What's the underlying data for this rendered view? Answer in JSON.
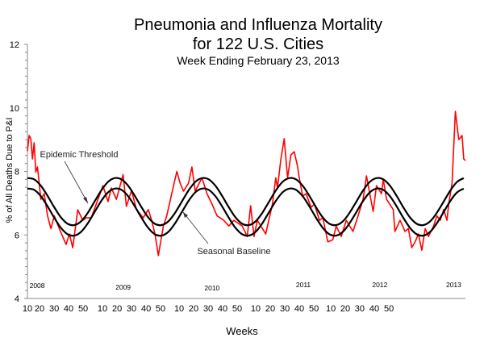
{
  "chart_data": {
    "type": "line",
    "title": "Pneumonia and Influenza Mortality",
    "title_line2": "for 122 U.S. Cities",
    "subtitle": "Week Ending  February 23, 2013",
    "xlabel": "Weeks",
    "ylabel": "% of All Deaths Due to P&I",
    "ylim": [
      4,
      12
    ],
    "xlim": [
      0,
      261
    ],
    "y_ticks": [
      4,
      6,
      8,
      10,
      12
    ],
    "y_minor_step": 0.25,
    "grid": false,
    "x_tick_labels": [
      {
        "week_index": 0,
        "label": "10"
      },
      {
        "week_index": 7.2,
        "label": "20"
      },
      {
        "week_index": 15.9,
        "label": "30"
      },
      {
        "week_index": 24.5,
        "label": "40"
      },
      {
        "week_index": 33.2,
        "label": "50"
      },
      {
        "week_index": 44.7,
        "label": "10"
      },
      {
        "week_index": 53.4,
        "label": "20"
      },
      {
        "week_index": 62,
        "label": "30"
      },
      {
        "week_index": 70.7,
        "label": "40"
      },
      {
        "week_index": 79.3,
        "label": "50"
      },
      {
        "week_index": 90.4,
        "label": "10"
      },
      {
        "week_index": 99,
        "label": "20"
      },
      {
        "week_index": 107.7,
        "label": "30"
      },
      {
        "week_index": 116.3,
        "label": "40"
      },
      {
        "week_index": 125,
        "label": "50"
      },
      {
        "week_index": 136,
        "label": "10"
      },
      {
        "week_index": 144.7,
        "label": "20"
      },
      {
        "week_index": 153.4,
        "label": "30"
      },
      {
        "week_index": 162,
        "label": "40"
      },
      {
        "week_index": 170.7,
        "label": "50"
      },
      {
        "week_index": 180.8,
        "label": "10"
      },
      {
        "week_index": 189.4,
        "label": "20"
      },
      {
        "week_index": 198,
        "label": "30"
      },
      {
        "week_index": 206.7,
        "label": "40"
      },
      {
        "week_index": 215.4,
        "label": "50"
      }
    ],
    "year_labels": [
      {
        "week_index": 5.8,
        "value": 4.33,
        "label": "2008"
      },
      {
        "week_index": 57,
        "value": 4.28,
        "label": "2009"
      },
      {
        "week_index": 110,
        "value": 4.25,
        "label": "2010"
      },
      {
        "week_index": 164.4,
        "value": 4.35,
        "label": "2011"
      },
      {
        "week_index": 210,
        "value": 4.35,
        "label": "2012"
      },
      {
        "week_index": 254,
        "value": 4.35,
        "label": "2013"
      }
    ],
    "annotations": {
      "threshold_label": "Epidemic Threshold",
      "baseline_label": "Seasonal Baseline"
    },
    "series": [
      {
        "name": "P&I Mortality",
        "color": "#ff0000",
        "points": [
          [
            0,
            8.64
          ],
          [
            1,
            9.13
          ],
          [
            2,
            9.03
          ],
          [
            3,
            8.39
          ],
          [
            4,
            8.9
          ],
          [
            5,
            7.98
          ],
          [
            6,
            8.14
          ],
          [
            8,
            7.12
          ],
          [
            10,
            7.3
          ],
          [
            12,
            6.6
          ],
          [
            14,
            6.2
          ],
          [
            16,
            6.6
          ],
          [
            19,
            6.2
          ],
          [
            23,
            5.7
          ],
          [
            25,
            6.03
          ],
          [
            27,
            5.6
          ],
          [
            30,
            6.79
          ],
          [
            33,
            6.46
          ],
          [
            35,
            6.54
          ],
          [
            38,
            6.54
          ],
          [
            41,
            6.97
          ],
          [
            45,
            7.55
          ],
          [
            48,
            7.05
          ],
          [
            50,
            7.48
          ],
          [
            53,
            7.12
          ],
          [
            57,
            7.9
          ],
          [
            59,
            6.9
          ],
          [
            62,
            7.4
          ],
          [
            65,
            6.8
          ],
          [
            69,
            6.54
          ],
          [
            72,
            6.8
          ],
          [
            74,
            6.46
          ],
          [
            76,
            6.03
          ],
          [
            78,
            5.35
          ],
          [
            81,
            6.28
          ],
          [
            83,
            6.6
          ],
          [
            86,
            7.3
          ],
          [
            89,
            8.0
          ],
          [
            91,
            7.63
          ],
          [
            93,
            7.38
          ],
          [
            96,
            7.63
          ],
          [
            98,
            8.14
          ],
          [
            100,
            7.38
          ],
          [
            104,
            7.8
          ],
          [
            107,
            7.3
          ],
          [
            110,
            6.97
          ],
          [
            113,
            6.6
          ],
          [
            117,
            6.46
          ],
          [
            120,
            6.28
          ],
          [
            123,
            6.46
          ],
          [
            128,
            6.28
          ],
          [
            131,
            5.95
          ],
          [
            133,
            6.92
          ],
          [
            135,
            5.95
          ],
          [
            137,
            6.46
          ],
          [
            142,
            6.03
          ],
          [
            146,
            6.97
          ],
          [
            148,
            7.8
          ],
          [
            149,
            7.48
          ],
          [
            151,
            8.37
          ],
          [
            153,
            9.03
          ],
          [
            155,
            7.8
          ],
          [
            157,
            8.52
          ],
          [
            159,
            8.62
          ],
          [
            161,
            8.14
          ],
          [
            162,
            7.8
          ],
          [
            164,
            7.22
          ],
          [
            166,
            7.3
          ],
          [
            169,
            6.87
          ],
          [
            171,
            6.97
          ],
          [
            174,
            6.46
          ],
          [
            176,
            6.54
          ],
          [
            179,
            5.78
          ],
          [
            182,
            5.85
          ],
          [
            184,
            6.28
          ],
          [
            187,
            5.95
          ],
          [
            190,
            6.46
          ],
          [
            194,
            6.11
          ],
          [
            197,
            6.6
          ],
          [
            200,
            7.12
          ],
          [
            202,
            7.86
          ],
          [
            204,
            7.3
          ],
          [
            206,
            6.74
          ],
          [
            208,
            7.55
          ],
          [
            211,
            7.3
          ],
          [
            212,
            7.76
          ],
          [
            214,
            7.12
          ],
          [
            218,
            6.8
          ],
          [
            219,
            6.11
          ],
          [
            222,
            6.46
          ],
          [
            225,
            6.11
          ],
          [
            227,
            6.2
          ],
          [
            229,
            5.6
          ],
          [
            231,
            5.78
          ],
          [
            233,
            6.03
          ],
          [
            235,
            5.52
          ],
          [
            237,
            6.2
          ],
          [
            239,
            5.95
          ],
          [
            242,
            6.28
          ],
          [
            244,
            6.6
          ],
          [
            246,
            6.46
          ],
          [
            248,
            6.8
          ],
          [
            250,
            6.46
          ],
          [
            251,
            6.97
          ],
          [
            253,
            7.63
          ],
          [
            255,
            9.89
          ],
          [
            257,
            9.0
          ],
          [
            259,
            9.13
          ],
          [
            260,
            8.39
          ],
          [
            261,
            8.34
          ]
        ]
      },
      {
        "name": "Epidemic Threshold",
        "color": "#000000",
        "step_weeks": 4,
        "values": [
          7.79,
          7.75,
          7.55,
          7.23,
          6.87,
          6.55,
          6.35,
          6.31,
          6.43,
          6.7,
          7.05,
          7.4,
          7.67,
          7.79,
          7.75,
          7.55,
          7.23,
          6.87,
          6.55,
          6.35,
          6.31,
          6.43,
          6.7,
          7.05,
          7.4,
          7.67,
          7.79,
          7.75,
          7.55,
          7.23,
          6.87,
          6.55,
          6.35,
          6.31,
          6.43,
          6.7,
          7.05,
          7.4,
          7.67,
          7.79,
          7.75,
          7.55,
          7.23,
          6.87,
          6.55,
          6.35,
          6.31,
          6.43,
          6.7,
          7.05,
          7.4,
          7.67,
          7.79,
          7.75,
          7.55,
          7.23,
          6.87,
          6.55,
          6.35,
          6.31,
          6.43,
          6.7,
          7.05,
          7.4,
          7.67,
          7.79
        ]
      },
      {
        "name": "Seasonal Baseline",
        "color": "#000000",
        "step_weeks": 4,
        "values": [
          7.46,
          7.42,
          7.22,
          6.9,
          6.54,
          6.22,
          6.02,
          5.98,
          6.1,
          6.37,
          6.72,
          7.07,
          7.34,
          7.46,
          7.42,
          7.22,
          6.9,
          6.54,
          6.22,
          6.02,
          5.98,
          6.1,
          6.37,
          6.72,
          7.07,
          7.34,
          7.46,
          7.42,
          7.22,
          6.9,
          6.54,
          6.22,
          6.02,
          5.98,
          6.1,
          6.37,
          6.72,
          7.07,
          7.34,
          7.46,
          7.42,
          7.22,
          6.9,
          6.54,
          6.22,
          6.02,
          5.98,
          6.1,
          6.37,
          6.72,
          7.07,
          7.34,
          7.46,
          7.42,
          7.22,
          6.9,
          6.54,
          6.22,
          6.02,
          5.98,
          6.1,
          6.37,
          6.72,
          7.07,
          7.34,
          7.46
        ]
      }
    ]
  }
}
